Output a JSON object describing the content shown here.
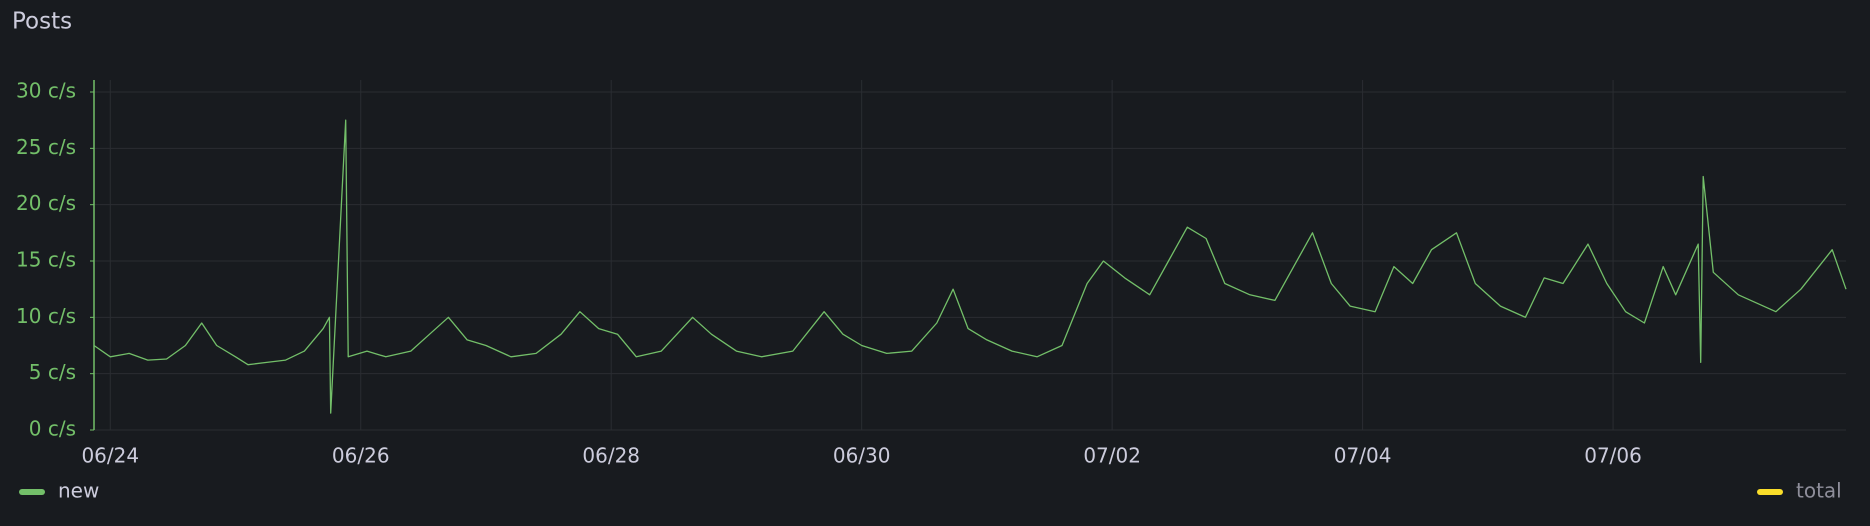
{
  "chart_data": {
    "type": "line",
    "title": "Posts",
    "x": [
      23.87,
      24.0,
      24.15,
      24.3,
      24.45,
      24.6,
      24.73,
      24.85,
      25.0,
      25.1,
      25.25,
      25.4,
      25.55,
      25.7,
      25.75,
      25.76,
      25.88,
      25.9,
      26.05,
      26.2,
      26.4,
      26.55,
      26.7,
      26.85,
      27.0,
      27.2,
      27.4,
      27.6,
      27.75,
      27.9,
      28.05,
      28.2,
      28.4,
      28.65,
      28.8,
      29.0,
      29.2,
      29.45,
      29.7,
      29.85,
      30.0,
      30.2,
      30.4,
      30.6,
      30.73,
      30.85,
      31.0,
      31.2,
      31.4,
      31.6,
      31.8,
      31.93,
      32.1,
      32.3,
      32.45,
      32.6,
      32.75,
      32.9,
      33.1,
      33.3,
      33.45,
      33.6,
      33.75,
      33.9,
      34.1,
      34.25,
      34.4,
      34.55,
      34.75,
      34.9,
      35.1,
      35.3,
      35.45,
      35.6,
      35.8,
      35.95,
      36.1,
      36.25,
      36.4,
      36.5,
      36.68,
      36.7,
      36.72,
      36.8,
      37.0,
      37.3,
      37.5,
      37.75,
      37.86
    ],
    "series": [
      {
        "name": "new",
        "color": "#73bf69",
        "values": [
          7.5,
          6.5,
          6.8,
          6.2,
          6.3,
          7.5,
          9.5,
          7.5,
          6.5,
          5.8,
          6.0,
          6.2,
          7.0,
          9.0,
          10.0,
          1.5,
          27.5,
          6.5,
          7.0,
          6.5,
          7.0,
          8.5,
          10.0,
          8.0,
          7.5,
          6.5,
          6.8,
          8.5,
          10.5,
          9.0,
          8.5,
          6.5,
          7.0,
          10.0,
          8.5,
          7.0,
          6.5,
          7.0,
          10.5,
          8.5,
          7.5,
          6.8,
          7.0,
          9.5,
          12.5,
          9.0,
          8.0,
          7.0,
          6.5,
          7.5,
          13.0,
          15.0,
          13.5,
          12.0,
          15.0,
          18.0,
          17.0,
          13.0,
          12.0,
          11.5,
          14.5,
          17.5,
          13.0,
          11.0,
          10.5,
          14.5,
          13.0,
          16.0,
          17.5,
          13.0,
          11.0,
          10.0,
          13.5,
          13.0,
          16.5,
          13.0,
          10.5,
          9.5,
          14.5,
          12.0,
          16.5,
          6.0,
          22.5,
          14.0,
          12.0,
          10.5,
          12.5,
          16.0,
          12.5
        ]
      },
      {
        "name": "total",
        "color": "#fade2a",
        "values": [
          null,
          null,
          null,
          null,
          null,
          null,
          null,
          null,
          null,
          null,
          null,
          null,
          null,
          null,
          null,
          null,
          null,
          null,
          null,
          null,
          null,
          null,
          null,
          null,
          null,
          null,
          null,
          null,
          null,
          null,
          null,
          null,
          null,
          null,
          null,
          null,
          null,
          null,
          null,
          null,
          null,
          null,
          null,
          null,
          null,
          null,
          null,
          null,
          null,
          null,
          null,
          null,
          null,
          null,
          null,
          null,
          null,
          null,
          null,
          null,
          null,
          null,
          null,
          null,
          null,
          null,
          null,
          null,
          null,
          null,
          null,
          null,
          null,
          null,
          null,
          null,
          null,
          null,
          null,
          null,
          null,
          null,
          null,
          null,
          null,
          null,
          null,
          null,
          null
        ]
      }
    ],
    "xlim": [
      23.87,
      37.86
    ],
    "xticks": [
      {
        "value": 24,
        "label": "06/24"
      },
      {
        "value": 26,
        "label": "06/26"
      },
      {
        "value": 28,
        "label": "06/28"
      },
      {
        "value": 30,
        "label": "06/30"
      },
      {
        "value": 32,
        "label": "07/02"
      },
      {
        "value": 34,
        "label": "07/04"
      },
      {
        "value": 36,
        "label": "07/06"
      }
    ],
    "ylim": [
      0,
      30
    ],
    "yticks": [
      {
        "value": 0,
        "label": "0 c/s"
      },
      {
        "value": 5,
        "label": "5 c/s"
      },
      {
        "value": 10,
        "label": "10 c/s"
      },
      {
        "value": 15,
        "label": "15 c/s"
      },
      {
        "value": 20,
        "label": "20 c/s"
      },
      {
        "value": 25,
        "label": "25 c/s"
      },
      {
        "value": 30,
        "label": "30 c/s"
      }
    ],
    "grid": true
  }
}
